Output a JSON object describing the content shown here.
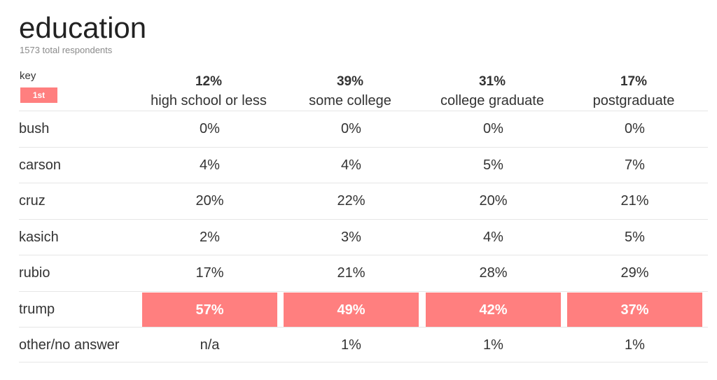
{
  "title": "education",
  "subtitle": "1573 total respondents",
  "key": {
    "label": "key",
    "badge": "1st"
  },
  "colors": {
    "highlight": "#ff7f7f"
  },
  "columns": [
    {
      "pct": "12%",
      "label": "high school or less"
    },
    {
      "pct": "39%",
      "label": "some college"
    },
    {
      "pct": "31%",
      "label": "college graduate"
    },
    {
      "pct": "17%",
      "label": "postgraduate"
    }
  ],
  "chart_data": {
    "type": "table",
    "title": "education",
    "subtitle": "1573 total respondents",
    "columns": [
      "high school or less",
      "some college",
      "college graduate",
      "postgraduate"
    ],
    "column_shares": [
      "12%",
      "39%",
      "31%",
      "17%"
    ],
    "rows": [
      {
        "label": "bush",
        "values": [
          "0%",
          "0%",
          "0%",
          "0%"
        ],
        "first": [
          false,
          false,
          false,
          false
        ]
      },
      {
        "label": "carson",
        "values": [
          "4%",
          "4%",
          "5%",
          "7%"
        ],
        "first": [
          false,
          false,
          false,
          false
        ]
      },
      {
        "label": "cruz",
        "values": [
          "20%",
          "22%",
          "20%",
          "21%"
        ],
        "first": [
          false,
          false,
          false,
          false
        ]
      },
      {
        "label": "kasich",
        "values": [
          "2%",
          "3%",
          "4%",
          "5%"
        ],
        "first": [
          false,
          false,
          false,
          false
        ]
      },
      {
        "label": "rubio",
        "values": [
          "17%",
          "21%",
          "28%",
          "29%"
        ],
        "first": [
          false,
          false,
          false,
          false
        ]
      },
      {
        "label": "trump",
        "values": [
          "57%",
          "49%",
          "42%",
          "37%"
        ],
        "first": [
          true,
          true,
          true,
          true
        ]
      },
      {
        "label": "other/no answer",
        "values": [
          "n/a",
          "1%",
          "1%",
          "1%"
        ],
        "first": [
          false,
          false,
          false,
          false
        ]
      }
    ]
  }
}
